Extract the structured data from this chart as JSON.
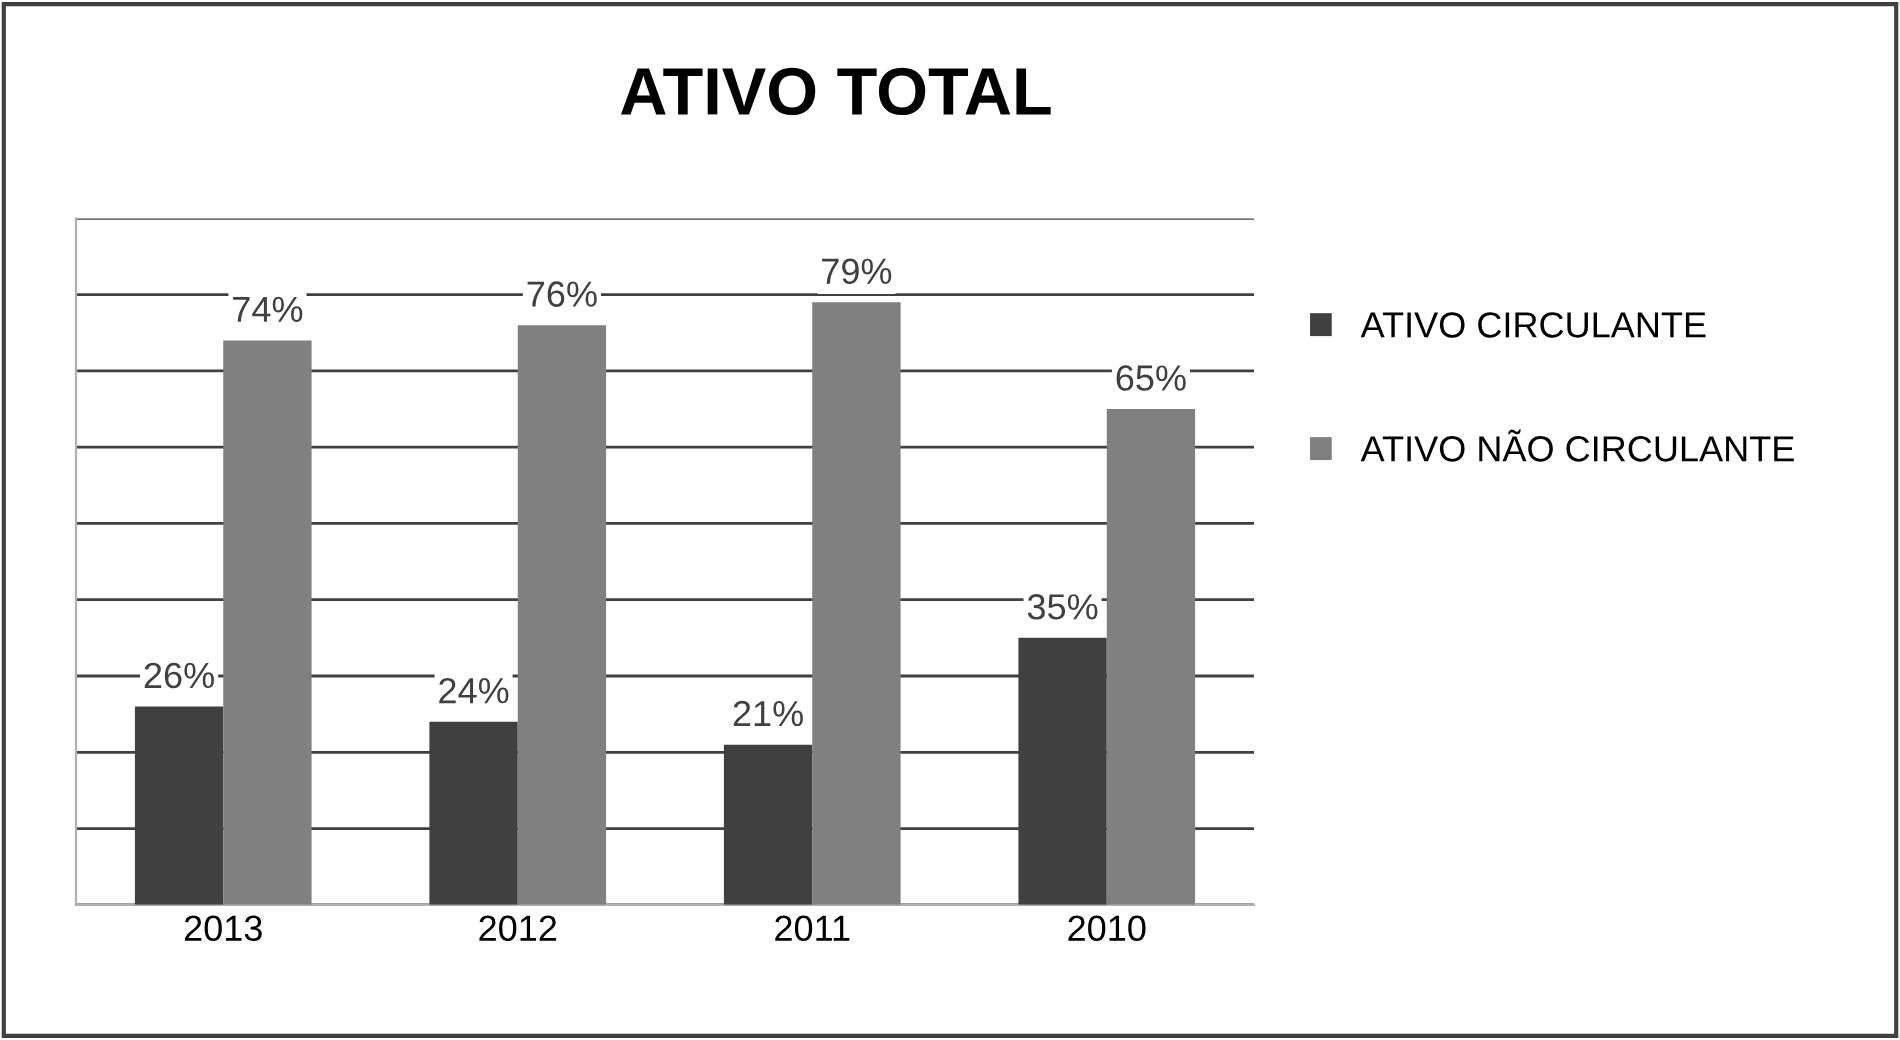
{
  "chart_data": {
    "type": "bar",
    "title": "ATIVO TOTAL",
    "categories": [
      "2013",
      "2012",
      "2011",
      "2010"
    ],
    "series": [
      {
        "name": "ATIVO CIRCULANTE",
        "color": "#404040",
        "values": [
          26,
          24,
          21,
          35
        ],
        "value_labels": [
          "26%",
          "24%",
          "21%",
          "35%"
        ]
      },
      {
        "name": "ATIVO NÃO CIRCULANTE",
        "color": "#808080",
        "values": [
          74,
          76,
          79,
          65
        ],
        "value_labels": [
          "74%",
          "76%",
          "79%",
          "65%"
        ]
      }
    ],
    "ylim": [
      0,
      90
    ],
    "yticks": [
      {
        "value": 0,
        "label": null
      },
      {
        "value": 10,
        "label": null
      },
      {
        "value": 20,
        "label": null
      },
      {
        "value": 30,
        "label": null
      },
      {
        "value": 40,
        "label": null
      },
      {
        "value": 50,
        "label": null
      },
      {
        "value": 60,
        "label": null
      },
      {
        "value": 70,
        "label": null
      },
      {
        "value": 80,
        "label": null
      },
      {
        "value": 90,
        "label": null
      }
    ],
    "grid": "y",
    "legend": "right",
    "tick_labels": "x"
  }
}
